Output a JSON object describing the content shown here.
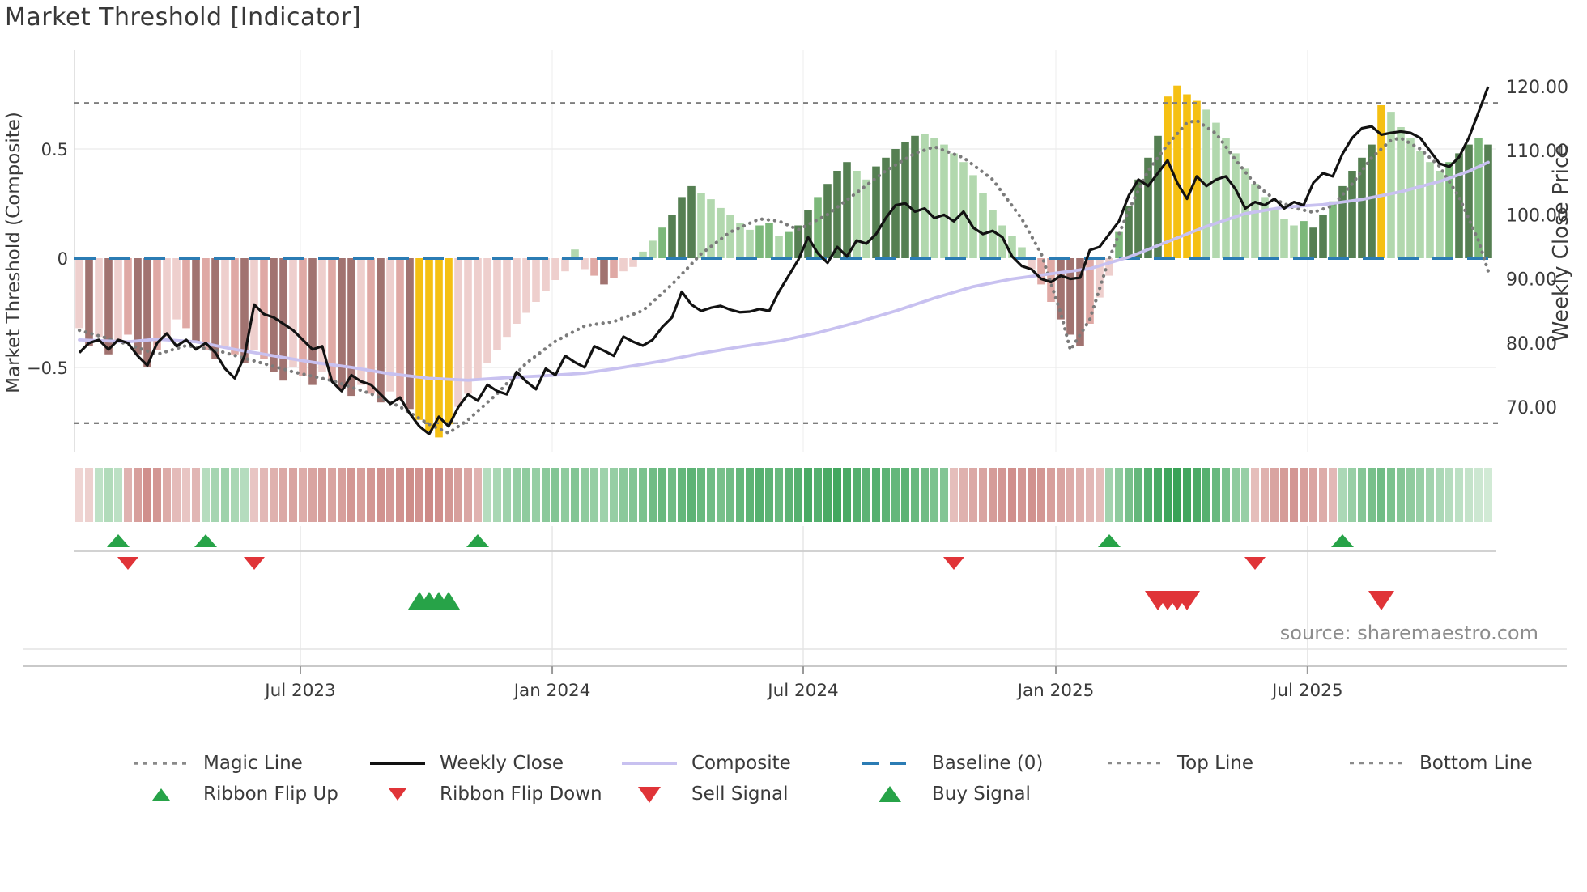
{
  "title": "Market Threshold [Indicator]",
  "source_text": "source: sharemaestro.com",
  "axes": {
    "left": {
      "title": "Market Threshold (Composite)",
      "ticks": [
        {
          "label": "0.5",
          "value": 0.5
        },
        {
          "label": "0",
          "value": 0
        },
        {
          "label": "−0.5",
          "value": -0.5
        }
      ]
    },
    "right": {
      "title": "Weekly Close Price",
      "ticks": [
        {
          "label": "120.00",
          "value": 120
        },
        {
          "label": "110.00",
          "value": 110
        },
        {
          "label": "100.00",
          "value": 100
        },
        {
          "label": "90.00",
          "value": 90
        },
        {
          "label": "80.00",
          "value": 80
        },
        {
          "label": "70.00",
          "value": 70
        }
      ]
    },
    "x": {
      "ticks": [
        {
          "label": "Jul 2023",
          "week": 22.75
        },
        {
          "label": "Jan 2024",
          "week": 48.67
        },
        {
          "label": "Jul 2024",
          "week": 74.5
        },
        {
          "label": "Jan 2025",
          "week": 100.5
        },
        {
          "label": "Jul 2025",
          "week": 126.4
        }
      ]
    }
  },
  "chart_data": {
    "type": "combo",
    "description": "Weekly composite-threshold oscillator bars with weekly close price overlay, trend ribbon and trade signals",
    "left_axis_range": [
      -0.9,
      0.95
    ],
    "right_axis_range": [
      62.8,
      125.3
    ],
    "baseline_value": 0,
    "top_line_value": 0.71,
    "bottom_line_value": -0.755,
    "grid": true,
    "legend_position": "bottom",
    "bars": [
      [
        -0.32,
        "p0"
      ],
      [
        -0.4,
        "p2"
      ],
      [
        -0.36,
        "p0"
      ],
      [
        -0.44,
        "p2"
      ],
      [
        -0.38,
        "p0"
      ],
      [
        -0.35,
        "p1"
      ],
      [
        -0.44,
        "p2"
      ],
      [
        -0.5,
        "p2"
      ],
      [
        -0.42,
        "p1"
      ],
      [
        -0.36,
        "p0"
      ],
      [
        -0.28,
        "p0"
      ],
      [
        -0.32,
        "p1"
      ],
      [
        -0.38,
        "p2"
      ],
      [
        -0.42,
        "p1"
      ],
      [
        -0.46,
        "p2"
      ],
      [
        -0.4,
        "p0"
      ],
      [
        -0.44,
        "p1"
      ],
      [
        -0.48,
        "p2"
      ],
      [
        -0.42,
        "p0"
      ],
      [
        -0.46,
        "p1"
      ],
      [
        -0.52,
        "p2"
      ],
      [
        -0.56,
        "p2"
      ],
      [
        -0.5,
        "p0"
      ],
      [
        -0.54,
        "p1"
      ],
      [
        -0.58,
        "p2"
      ],
      [
        -0.52,
        "p0"
      ],
      [
        -0.56,
        "p1"
      ],
      [
        -0.6,
        "p2"
      ],
      [
        -0.63,
        "p2"
      ],
      [
        -0.58,
        "p0"
      ],
      [
        -0.62,
        "p1"
      ],
      [
        -0.66,
        "p2"
      ],
      [
        -0.61,
        "p0"
      ],
      [
        -0.65,
        "p1"
      ],
      [
        -0.69,
        "p2"
      ],
      [
        -0.74,
        "y"
      ],
      [
        -0.79,
        "y"
      ],
      [
        -0.82,
        "y"
      ],
      [
        -0.76,
        "y"
      ],
      [
        -0.68,
        "p0"
      ],
      [
        -0.62,
        "p0"
      ],
      [
        -0.55,
        "p0"
      ],
      [
        -0.48,
        "p0"
      ],
      [
        -0.42,
        "p0"
      ],
      [
        -0.36,
        "p0"
      ],
      [
        -0.3,
        "p0"
      ],
      [
        -0.25,
        "p0"
      ],
      [
        -0.2,
        "p0"
      ],
      [
        -0.15,
        "p0"
      ],
      [
        -0.1,
        "p0"
      ],
      [
        -0.06,
        "p0"
      ],
      [
        0.04,
        "g0"
      ],
      [
        -0.05,
        "p0"
      ],
      [
        -0.08,
        "p1"
      ],
      [
        -0.12,
        "p2"
      ],
      [
        -0.09,
        "p1"
      ],
      [
        -0.06,
        "p0"
      ],
      [
        -0.04,
        "p0"
      ],
      [
        0.03,
        "g0"
      ],
      [
        0.08,
        "g0"
      ],
      [
        0.14,
        "g1"
      ],
      [
        0.2,
        "g2"
      ],
      [
        0.28,
        "g2"
      ],
      [
        0.33,
        "g2"
      ],
      [
        0.3,
        "g0"
      ],
      [
        0.27,
        "g0"
      ],
      [
        0.23,
        "g0"
      ],
      [
        0.2,
        "g0"
      ],
      [
        0.16,
        "g0"
      ],
      [
        0.13,
        "g0"
      ],
      [
        0.15,
        "g1"
      ],
      [
        0.16,
        "g1"
      ],
      [
        0.1,
        "g0"
      ],
      [
        0.12,
        "g1"
      ],
      [
        0.15,
        "g2"
      ],
      [
        0.22,
        "g2"
      ],
      [
        0.28,
        "g1"
      ],
      [
        0.34,
        "g2"
      ],
      [
        0.4,
        "g2"
      ],
      [
        0.44,
        "g2"
      ],
      [
        0.4,
        "g0"
      ],
      [
        0.36,
        "g0"
      ],
      [
        0.42,
        "g2"
      ],
      [
        0.46,
        "g2"
      ],
      [
        0.5,
        "g2"
      ],
      [
        0.53,
        "g2"
      ],
      [
        0.56,
        "g2"
      ],
      [
        0.57,
        "g0"
      ],
      [
        0.55,
        "g0"
      ],
      [
        0.52,
        "g0"
      ],
      [
        0.48,
        "g0"
      ],
      [
        0.44,
        "g0"
      ],
      [
        0.38,
        "g0"
      ],
      [
        0.3,
        "g0"
      ],
      [
        0.22,
        "g0"
      ],
      [
        0.15,
        "g0"
      ],
      [
        0.1,
        "g0"
      ],
      [
        0.05,
        "g0"
      ],
      [
        -0.05,
        "p0"
      ],
      [
        -0.12,
        "p1"
      ],
      [
        -0.2,
        "p1"
      ],
      [
        -0.28,
        "p2"
      ],
      [
        -0.35,
        "p2"
      ],
      [
        -0.4,
        "p2"
      ],
      [
        -0.3,
        "p1"
      ],
      [
        -0.18,
        "p0"
      ],
      [
        -0.08,
        "p0"
      ],
      [
        0.12,
        "g1"
      ],
      [
        0.24,
        "g2"
      ],
      [
        0.36,
        "g2"
      ],
      [
        0.46,
        "g2"
      ],
      [
        0.56,
        "g2"
      ],
      [
        0.74,
        "y"
      ],
      [
        0.79,
        "y"
      ],
      [
        0.75,
        "y"
      ],
      [
        0.72,
        "y"
      ],
      [
        0.68,
        "g0"
      ],
      [
        0.62,
        "g0"
      ],
      [
        0.55,
        "g0"
      ],
      [
        0.48,
        "g0"
      ],
      [
        0.41,
        "g0"
      ],
      [
        0.34,
        "g0"
      ],
      [
        0.28,
        "g0"
      ],
      [
        0.22,
        "g0"
      ],
      [
        0.18,
        "g0"
      ],
      [
        0.15,
        "g0"
      ],
      [
        0.17,
        "g1"
      ],
      [
        0.14,
        "g2"
      ],
      [
        0.2,
        "g2"
      ],
      [
        0.26,
        "g1"
      ],
      [
        0.33,
        "g2"
      ],
      [
        0.4,
        "g2"
      ],
      [
        0.46,
        "g2"
      ],
      [
        0.52,
        "g2"
      ],
      [
        0.7,
        "y"
      ],
      [
        0.67,
        "g0"
      ],
      [
        0.6,
        "g0"
      ],
      [
        0.55,
        "g0"
      ],
      [
        0.49,
        "g0"
      ],
      [
        0.44,
        "g0"
      ],
      [
        0.4,
        "g0"
      ],
      [
        0.44,
        "g1"
      ],
      [
        0.48,
        "g2"
      ],
      [
        0.52,
        "g2"
      ],
      [
        0.55,
        "g1"
      ],
      [
        0.52,
        "g2"
      ]
    ],
    "weekly_close": [
      78.5,
      80.0,
      80.5,
      79.0,
      80.5,
      80.0,
      78.0,
      76.5,
      80.0,
      81.5,
      79.5,
      80.5,
      79.0,
      80.0,
      78.5,
      76.0,
      74.5,
      78.0,
      86.0,
      84.5,
      84.0,
      83.0,
      82.0,
      80.5,
      79.0,
      79.5,
      74.0,
      72.5,
      75.0,
      74.0,
      73.5,
      72.0,
      70.5,
      71.5,
      69.0,
      67.0,
      65.8,
      68.5,
      67.0,
      70.0,
      72.0,
      71.0,
      73.5,
      72.5,
      72.0,
      75.5,
      74.0,
      72.8,
      76.0,
      75.0,
      78.0,
      77.0,
      76.2,
      79.5,
      78.8,
      78.0,
      81.0,
      80.2,
      79.6,
      80.5,
      82.5,
      84.0,
      88.0,
      86.0,
      85.0,
      85.5,
      85.8,
      85.2,
      84.8,
      84.9,
      85.3,
      85.0,
      88.0,
      90.5,
      93.0,
      96.5,
      94.0,
      92.5,
      95.0,
      93.5,
      96.0,
      95.5,
      97.0,
      99.5,
      101.5,
      101.8,
      100.5,
      101.0,
      99.5,
      100.0,
      99.0,
      100.5,
      98.0,
      97.0,
      97.5,
      96.5,
      93.5,
      92.0,
      91.5,
      90.0,
      89.5,
      90.5,
      90.0,
      90.2,
      94.5,
      95.0,
      97.0,
      99.0,
      103.0,
      105.5,
      104.5,
      106.5,
      108.5,
      105.0,
      102.5,
      106.0,
      104.5,
      105.5,
      106.0,
      104.0,
      101.0,
      102.0,
      101.5,
      102.5,
      101.0,
      102.0,
      101.5,
      105.0,
      106.5,
      106.0,
      109.5,
      112.0,
      113.5,
      113.8,
      112.5,
      112.8,
      113.0,
      112.8,
      112.0,
      110.0,
      108.0,
      107.5,
      109.0,
      112.0,
      116.0,
      120.0
    ],
    "composite_line": [
      [
        0,
        80.5
      ],
      [
        5,
        80.2
      ],
      [
        8,
        80.6
      ],
      [
        12,
        80.2
      ],
      [
        16,
        79.0
      ],
      [
        20,
        78.0
      ],
      [
        24,
        77.0
      ],
      [
        28,
        76.2
      ],
      [
        32,
        75.2
      ],
      [
        36,
        74.5
      ],
      [
        40,
        74.2
      ],
      [
        44,
        74.6
      ],
      [
        48,
        74.9
      ],
      [
        52,
        75.3
      ],
      [
        56,
        76.2
      ],
      [
        60,
        77.2
      ],
      [
        64,
        78.4
      ],
      [
        68,
        79.4
      ],
      [
        72,
        80.3
      ],
      [
        76,
        81.6
      ],
      [
        80,
        83.2
      ],
      [
        84,
        85.0
      ],
      [
        88,
        87.0
      ],
      [
        92,
        88.8
      ],
      [
        96,
        90.0
      ],
      [
        100,
        90.8
      ],
      [
        104,
        91.6
      ],
      [
        108,
        93.4
      ],
      [
        112,
        95.8
      ],
      [
        116,
        98.2
      ],
      [
        120,
        100.2
      ],
      [
        124,
        101.2
      ],
      [
        128,
        101.6
      ],
      [
        132,
        102.4
      ],
      [
        136,
        103.6
      ],
      [
        140,
        105.2
      ],
      [
        143,
        106.8
      ],
      [
        145,
        108.2
      ]
    ],
    "magic_line": [
      [
        0,
        -0.33
      ],
      [
        4,
        -0.38
      ],
      [
        8,
        -0.44
      ],
      [
        11,
        -0.4
      ],
      [
        14,
        -0.42
      ],
      [
        18,
        -0.47
      ],
      [
        22,
        -0.52
      ],
      [
        26,
        -0.56
      ],
      [
        30,
        -0.62
      ],
      [
        33,
        -0.68
      ],
      [
        36,
        -0.76
      ],
      [
        38,
        -0.8
      ],
      [
        40,
        -0.74
      ],
      [
        43,
        -0.62
      ],
      [
        46,
        -0.48
      ],
      [
        49,
        -0.38
      ],
      [
        52,
        -0.31
      ],
      [
        55,
        -0.29
      ],
      [
        58,
        -0.24
      ],
      [
        61,
        -0.12
      ],
      [
        64,
        0.02
      ],
      [
        67,
        0.12
      ],
      [
        70,
        0.18
      ],
      [
        72,
        0.17
      ],
      [
        74,
        0.13
      ],
      [
        77,
        0.2
      ],
      [
        80,
        0.3
      ],
      [
        83,
        0.4
      ],
      [
        86,
        0.48
      ],
      [
        88,
        0.51
      ],
      [
        91,
        0.46
      ],
      [
        94,
        0.36
      ],
      [
        97,
        0.18
      ],
      [
        99,
        0.02
      ],
      [
        101,
        -0.25
      ],
      [
        102,
        -0.42
      ],
      [
        104,
        -0.28
      ],
      [
        106,
        0.0
      ],
      [
        108,
        0.22
      ],
      [
        110,
        0.4
      ],
      [
        112,
        0.52
      ],
      [
        114,
        0.62
      ],
      [
        115,
        0.63
      ],
      [
        117,
        0.57
      ],
      [
        119,
        0.45
      ],
      [
        121,
        0.34
      ],
      [
        123,
        0.27
      ],
      [
        125,
        0.23
      ],
      [
        127,
        0.21
      ],
      [
        129,
        0.24
      ],
      [
        131,
        0.34
      ],
      [
        133,
        0.46
      ],
      [
        135,
        0.54
      ],
      [
        136,
        0.55
      ],
      [
        138,
        0.5
      ],
      [
        140,
        0.42
      ],
      [
        142,
        0.28
      ],
      [
        144,
        0.08
      ],
      [
        145,
        -0.06
      ]
    ],
    "ribbon": [
      -0.18,
      -0.22,
      0.25,
      0.32,
      0.26,
      -0.45,
      -0.6,
      -0.72,
      -0.66,
      -0.5,
      -0.38,
      -0.3,
      -0.42,
      0.3,
      0.38,
      0.42,
      0.36,
      0.3,
      -0.3,
      -0.4,
      -0.46,
      -0.52,
      -0.56,
      -0.5,
      -0.56,
      -0.62,
      -0.56,
      -0.6,
      -0.66,
      -0.6,
      -0.66,
      -0.7,
      -0.64,
      -0.7,
      -0.74,
      -0.7,
      -0.76,
      -0.72,
      -0.66,
      -0.6,
      -0.54,
      -0.44,
      0.3,
      0.36,
      0.42,
      0.46,
      0.5,
      0.46,
      0.52,
      0.56,
      0.5,
      0.56,
      0.5,
      0.46,
      0.42,
      0.46,
      0.52,
      0.56,
      0.6,
      0.66,
      0.7,
      0.66,
      0.72,
      0.76,
      0.7,
      0.66,
      0.62,
      0.66,
      0.72,
      0.76,
      0.8,
      0.76,
      0.7,
      0.76,
      0.8,
      0.86,
      0.8,
      0.86,
      0.9,
      0.86,
      0.8,
      0.76,
      0.8,
      0.76,
      0.72,
      0.76,
      0.7,
      0.66,
      0.6,
      0.56,
      -0.36,
      -0.46,
      -0.52,
      -0.56,
      -0.62,
      -0.66,
      -0.72,
      -0.66,
      -0.7,
      -0.66,
      -0.6,
      -0.56,
      -0.5,
      -0.46,
      -0.4,
      -0.36,
      0.4,
      0.5,
      0.62,
      0.72,
      0.8,
      0.86,
      0.92,
      0.95,
      0.9,
      0.85,
      0.8,
      0.7,
      0.6,
      0.5,
      0.45,
      -0.36,
      -0.46,
      -0.56,
      -0.62,
      -0.66,
      -0.6,
      -0.55,
      -0.5,
      -0.4,
      0.35,
      0.45,
      0.55,
      0.62,
      0.66,
      0.6,
      0.55,
      0.5,
      0.45,
      0.4,
      0.35,
      0.3,
      0.26,
      0.22,
      0.18,
      0.15
    ],
    "signals": {
      "ribbon_flip_up_weeks": [
        4,
        13,
        41,
        106,
        130
      ],
      "ribbon_flip_down_weeks": [
        5,
        18,
        90,
        121
      ],
      "buy_signal_weeks": [
        35,
        36,
        37,
        38
      ],
      "sell_signal_weeks": [
        111,
        112,
        113,
        114,
        134
      ]
    }
  },
  "colors": {
    "bar_shades": {
      "p0": "#eecfcd",
      "p1": "#dfa9a5",
      "p2": "#a17370",
      "g0": "#b2d8ae",
      "g1": "#7cb87a",
      "g2": "#557f52",
      "y": "#f5c013"
    },
    "ribbon_red_light": "#faeceb",
    "ribbon_red_dark": "#bf6b67",
    "ribbon_green_light": "#eef7ed",
    "ribbon_green_dark": "#2f9e4f",
    "baseline": "#2b7cb4",
    "magic": "#7b7b7b",
    "weekly_close": "#121212",
    "composite": "#c8c1f0",
    "threshold": "#7e7e7e",
    "signal_green": "#27a348",
    "signal_red": "#e03438",
    "grid": "#ededed",
    "spine": "#c9c9c9",
    "text": "#3a3a3a",
    "muted_text": "#8d8d8d"
  },
  "legend": {
    "row1": [
      {
        "label": "Magic Line",
        "marker": "dashed-dot",
        "color": "#8a8a8a"
      },
      {
        "label": "Weekly Close",
        "marker": "solid",
        "color": "#121212"
      },
      {
        "label": "Composite",
        "marker": "solid",
        "color": "#c8c1f0"
      },
      {
        "label": "Baseline (0)",
        "marker": "dashed-long",
        "color": "#2b7cb4"
      },
      {
        "label": "Top Line",
        "marker": "dashed-short",
        "color": "#8a8a8a"
      },
      {
        "label": "Bottom Line",
        "marker": "dashed-short",
        "color": "#8a8a8a"
      }
    ],
    "row2": [
      {
        "label": "Ribbon Flip Up",
        "marker": "tri-up-small",
        "color": "#27a348"
      },
      {
        "label": "Ribbon Flip Down",
        "marker": "tri-down-small",
        "color": "#e03438"
      },
      {
        "label": "Sell Signal",
        "marker": "tri-down-big",
        "color": "#e03438"
      },
      {
        "label": "Buy Signal",
        "marker": "tri-up-big",
        "color": "#27a348"
      }
    ]
  }
}
